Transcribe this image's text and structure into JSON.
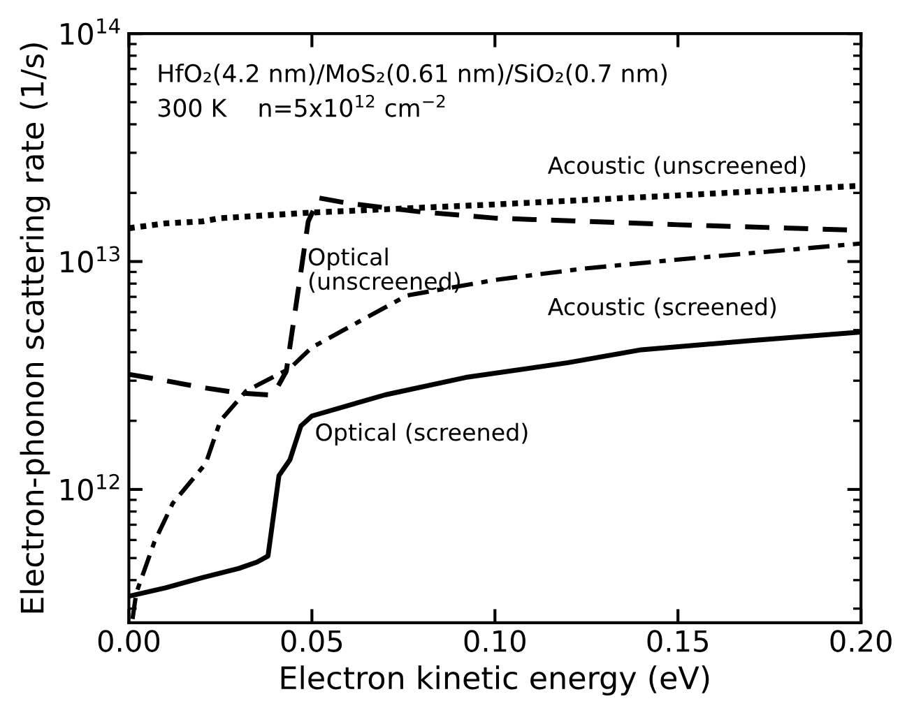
{
  "chart_data": {
    "type": "line",
    "xlabel": "Electron kinetic energy (eV)",
    "ylabel": "Electron-phonon scattering rate (1/s)",
    "log": "y",
    "grid": false,
    "legend": false,
    "marker": "none",
    "xlim": [
      0,
      0.2
    ],
    "xticks": [
      {
        "value": 0,
        "label": "0.00"
      },
      0.05,
      {
        "value": 0.1,
        "label": "0.10"
      },
      0.15,
      {
        "value": 0.2,
        "label": "0.20"
      }
    ],
    "ylim": [
      260000000000.0,
      100000000000000.0
    ],
    "yticks": [
      {
        "value": 1000000000000.0,
        "label": "10$^{12}$"
      },
      {
        "value": 10000000000000.0,
        "label": "10$^{13}$"
      },
      {
        "value": 100000000000000.0,
        "label": "10$^{14}$"
      }
    ],
    "series": [
      {
        "color": "#000000",
        "line_style": "dotted",
        "x": [
          0,
          0.01,
          0.02,
          0.025,
          0.05,
          0.1,
          0.15,
          0.2
        ],
        "values": [
          14000000000000.0,
          14700000000000.0,
          15000000000000.0,
          15500000000000.0,
          16400000000000.0,
          17800000000000.0,
          19500000000000.0,
          21500000000000.0
        ]
      },
      {
        "color": "#000000",
        "line_style": "dashed",
        "x": [
          0,
          0.01,
          0.02,
          0.03,
          0.038,
          0.04,
          0.043,
          0.046,
          0.049,
          0.052,
          0.06,
          0.08,
          0.1,
          0.15,
          0.2
        ],
        "values": [
          3200000000000.0,
          3000000000000.0,
          2800000000000.0,
          2650000000000.0,
          2600000000000.0,
          2700000000000.0,
          3300000000000.0,
          7000000000000.0,
          15000000000000.0,
          19000000000000.0,
          18000000000000.0,
          16500000000000.0,
          15500000000000.0,
          14500000000000.0,
          13700000000000.0
        ]
      },
      {
        "color": "#000000",
        "line_style": "dashdot",
        "x": [
          0.001,
          0.002,
          0.007,
          0.012,
          0.021,
          0.025,
          0.032,
          0.044,
          0.05,
          0.076,
          0.1,
          0.124,
          0.15,
          0.2
        ],
        "values": [
          270000000000.0,
          350000000000.0,
          590000000000.0,
          870000000000.0,
          1300000000000.0,
          2000000000000.0,
          2700000000000.0,
          3400000000000.0,
          4200000000000.0,
          7100000000000.0,
          8300000000000.0,
          9300000000000.0,
          10200000000000.0,
          12000000000000.0
        ]
      },
      {
        "color": "#000000",
        "line_style": "solid",
        "x": [
          0,
          0.01,
          0.02,
          0.03,
          0.035,
          0.038,
          0.041,
          0.044,
          0.047,
          0.05,
          0.07,
          0.092,
          0.12,
          0.14,
          0.17,
          0.2
        ],
        "values": [
          340000000000.0,
          370000000000.0,
          410000000000.0,
          450000000000.0,
          480000000000.0,
          510000000000.0,
          1150000000000.0,
          1350000000000.0,
          1900000000000.0,
          2100000000000.0,
          2600000000000.0,
          3100000000000.0,
          3600000000000.0,
          4100000000000.0,
          4500000000000.0,
          4900000000000.0
        ]
      }
    ],
    "annotations": [
      "HfO₂(4.2 nm)/MoS₂(0.61 nm)/SiO₂(0.7 nm)",
      "300 K    n=5x10$^{12}$ cm$^{−2}$",
      "Acoustic (unscreened)",
      "Optical\n(unscreened)",
      "Acoustic (screened)",
      "Optical (screened)"
    ]
  }
}
